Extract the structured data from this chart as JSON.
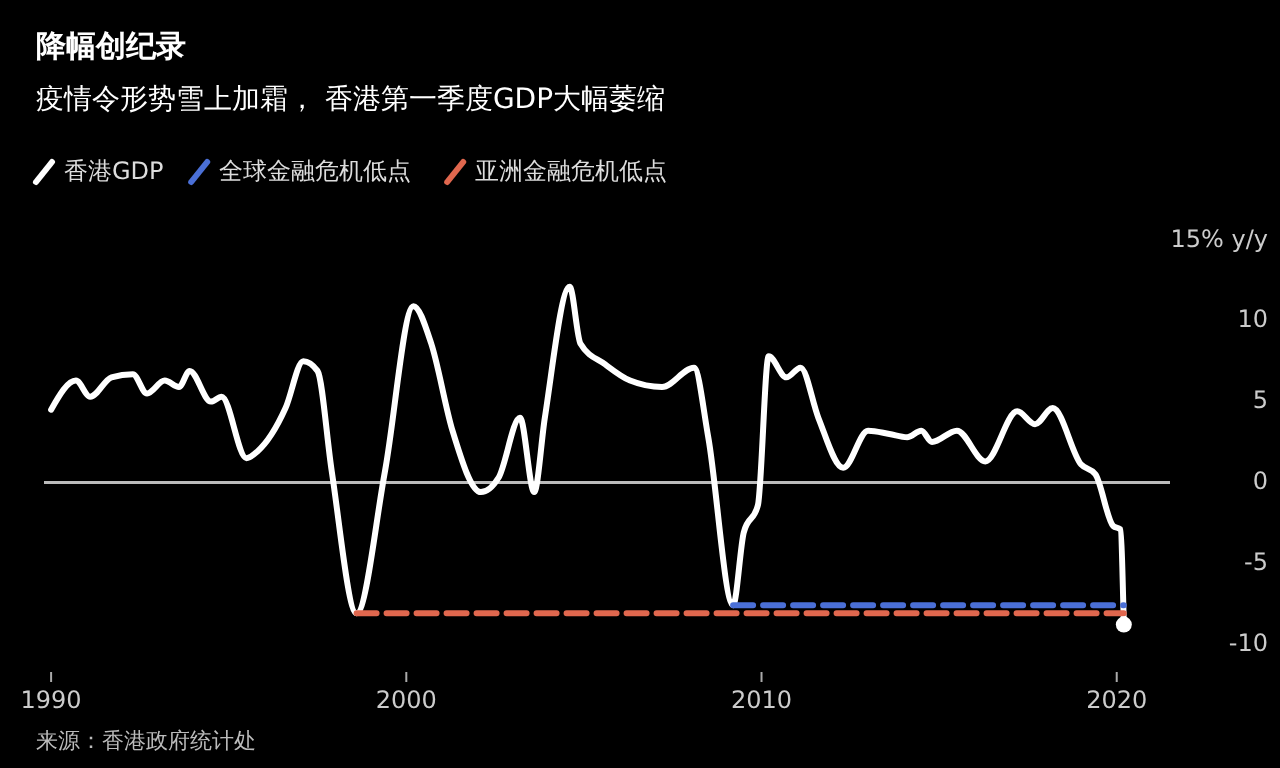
{
  "chart_data": {
    "type": "line",
    "title": "降幅创纪录",
    "subtitle": "疫情令形势雪上加霜， 香港第一季度GDP大幅萎缩",
    "annotations": [
      "来源：香港政府统计处"
    ],
    "legend": "top left",
    "xlim": [
      1989.8,
      2021.5
    ],
    "xticks": [
      1990,
      2000,
      2010,
      2020
    ],
    "ylim": [
      -10,
      15
    ],
    "yticks": [
      {
        "value": 15,
        "label": "15% y/y"
      },
      10,
      5,
      0,
      -5,
      -10
    ],
    "ref_lines": [
      {
        "axis": "y",
        "value": 0,
        "color": "#bbbbbb"
      }
    ],
    "series": [
      {
        "name": "香港GDP",
        "color": "#ffffff",
        "line_style": "solid",
        "x": [
          1990.0,
          1990.7,
          1991.1,
          1991.7,
          1992.3,
          1992.7,
          1993.2,
          1993.6,
          1993.9,
          1994.5,
          1994.8,
          1995.5,
          1995.8,
          1996.6,
          1997.1,
          1997.5,
          1997.9,
          1998.6,
          1999.4,
          2000.2,
          2000.7,
          2001.3,
          2002.1,
          2002.6,
          2003.2,
          2003.6,
          2003.9,
          2004.6,
          2004.9,
          2005.6,
          2006.3,
          2007.2,
          2008.1,
          2008.5,
          2009.2,
          2009.5,
          2009.9,
          2010.2,
          2010.7,
          2011.1,
          2011.6,
          2012.3,
          2013.0,
          2013.6,
          2014.1,
          2014.5,
          2014.8,
          2015.5,
          2016.3,
          2017.2,
          2017.7,
          2018.2,
          2019.0,
          2019.4,
          2019.9,
          2020.1,
          2020.2
        ],
        "values": [
          4.5,
          6.3,
          5.3,
          6.5,
          6.7,
          5.5,
          6.3,
          5.9,
          6.9,
          5.0,
          5.3,
          1.5,
          1.9,
          4.6,
          7.5,
          6.9,
          0.7,
          -8.1,
          0.7,
          10.9,
          8.6,
          3.2,
          -0.6,
          0.3,
          4.0,
          -0.6,
          4.0,
          12.1,
          8.6,
          7.3,
          6.3,
          5.9,
          7.1,
          2.8,
          -7.6,
          -3.1,
          -1.4,
          7.8,
          6.5,
          7.1,
          4.0,
          0.9,
          3.2,
          3.0,
          2.8,
          3.2,
          2.5,
          3.2,
          1.3,
          4.4,
          3.6,
          4.6,
          1.1,
          0.5,
          -2.7,
          -2.9,
          -8.8
        ]
      },
      {
        "name": "全球金融危机低点",
        "type": "line",
        "color": "#4a6fd6",
        "line_style": "dashed",
        "x": [
          2009.2,
          2020.2
        ],
        "values": [
          -7.6,
          -7.6
        ]
      },
      {
        "name": "亚洲金融危机低点",
        "type": "line",
        "color": "#e0674e",
        "line_style": "dashed",
        "x": [
          1998.6,
          2020.2
        ],
        "values": [
          -8.1,
          -8.1
        ]
      },
      {
        "type": "scatter",
        "color": "#ffffff",
        "marker": "circle",
        "x": [
          2020.2
        ],
        "values": [
          -8.8
        ]
      }
    ]
  }
}
